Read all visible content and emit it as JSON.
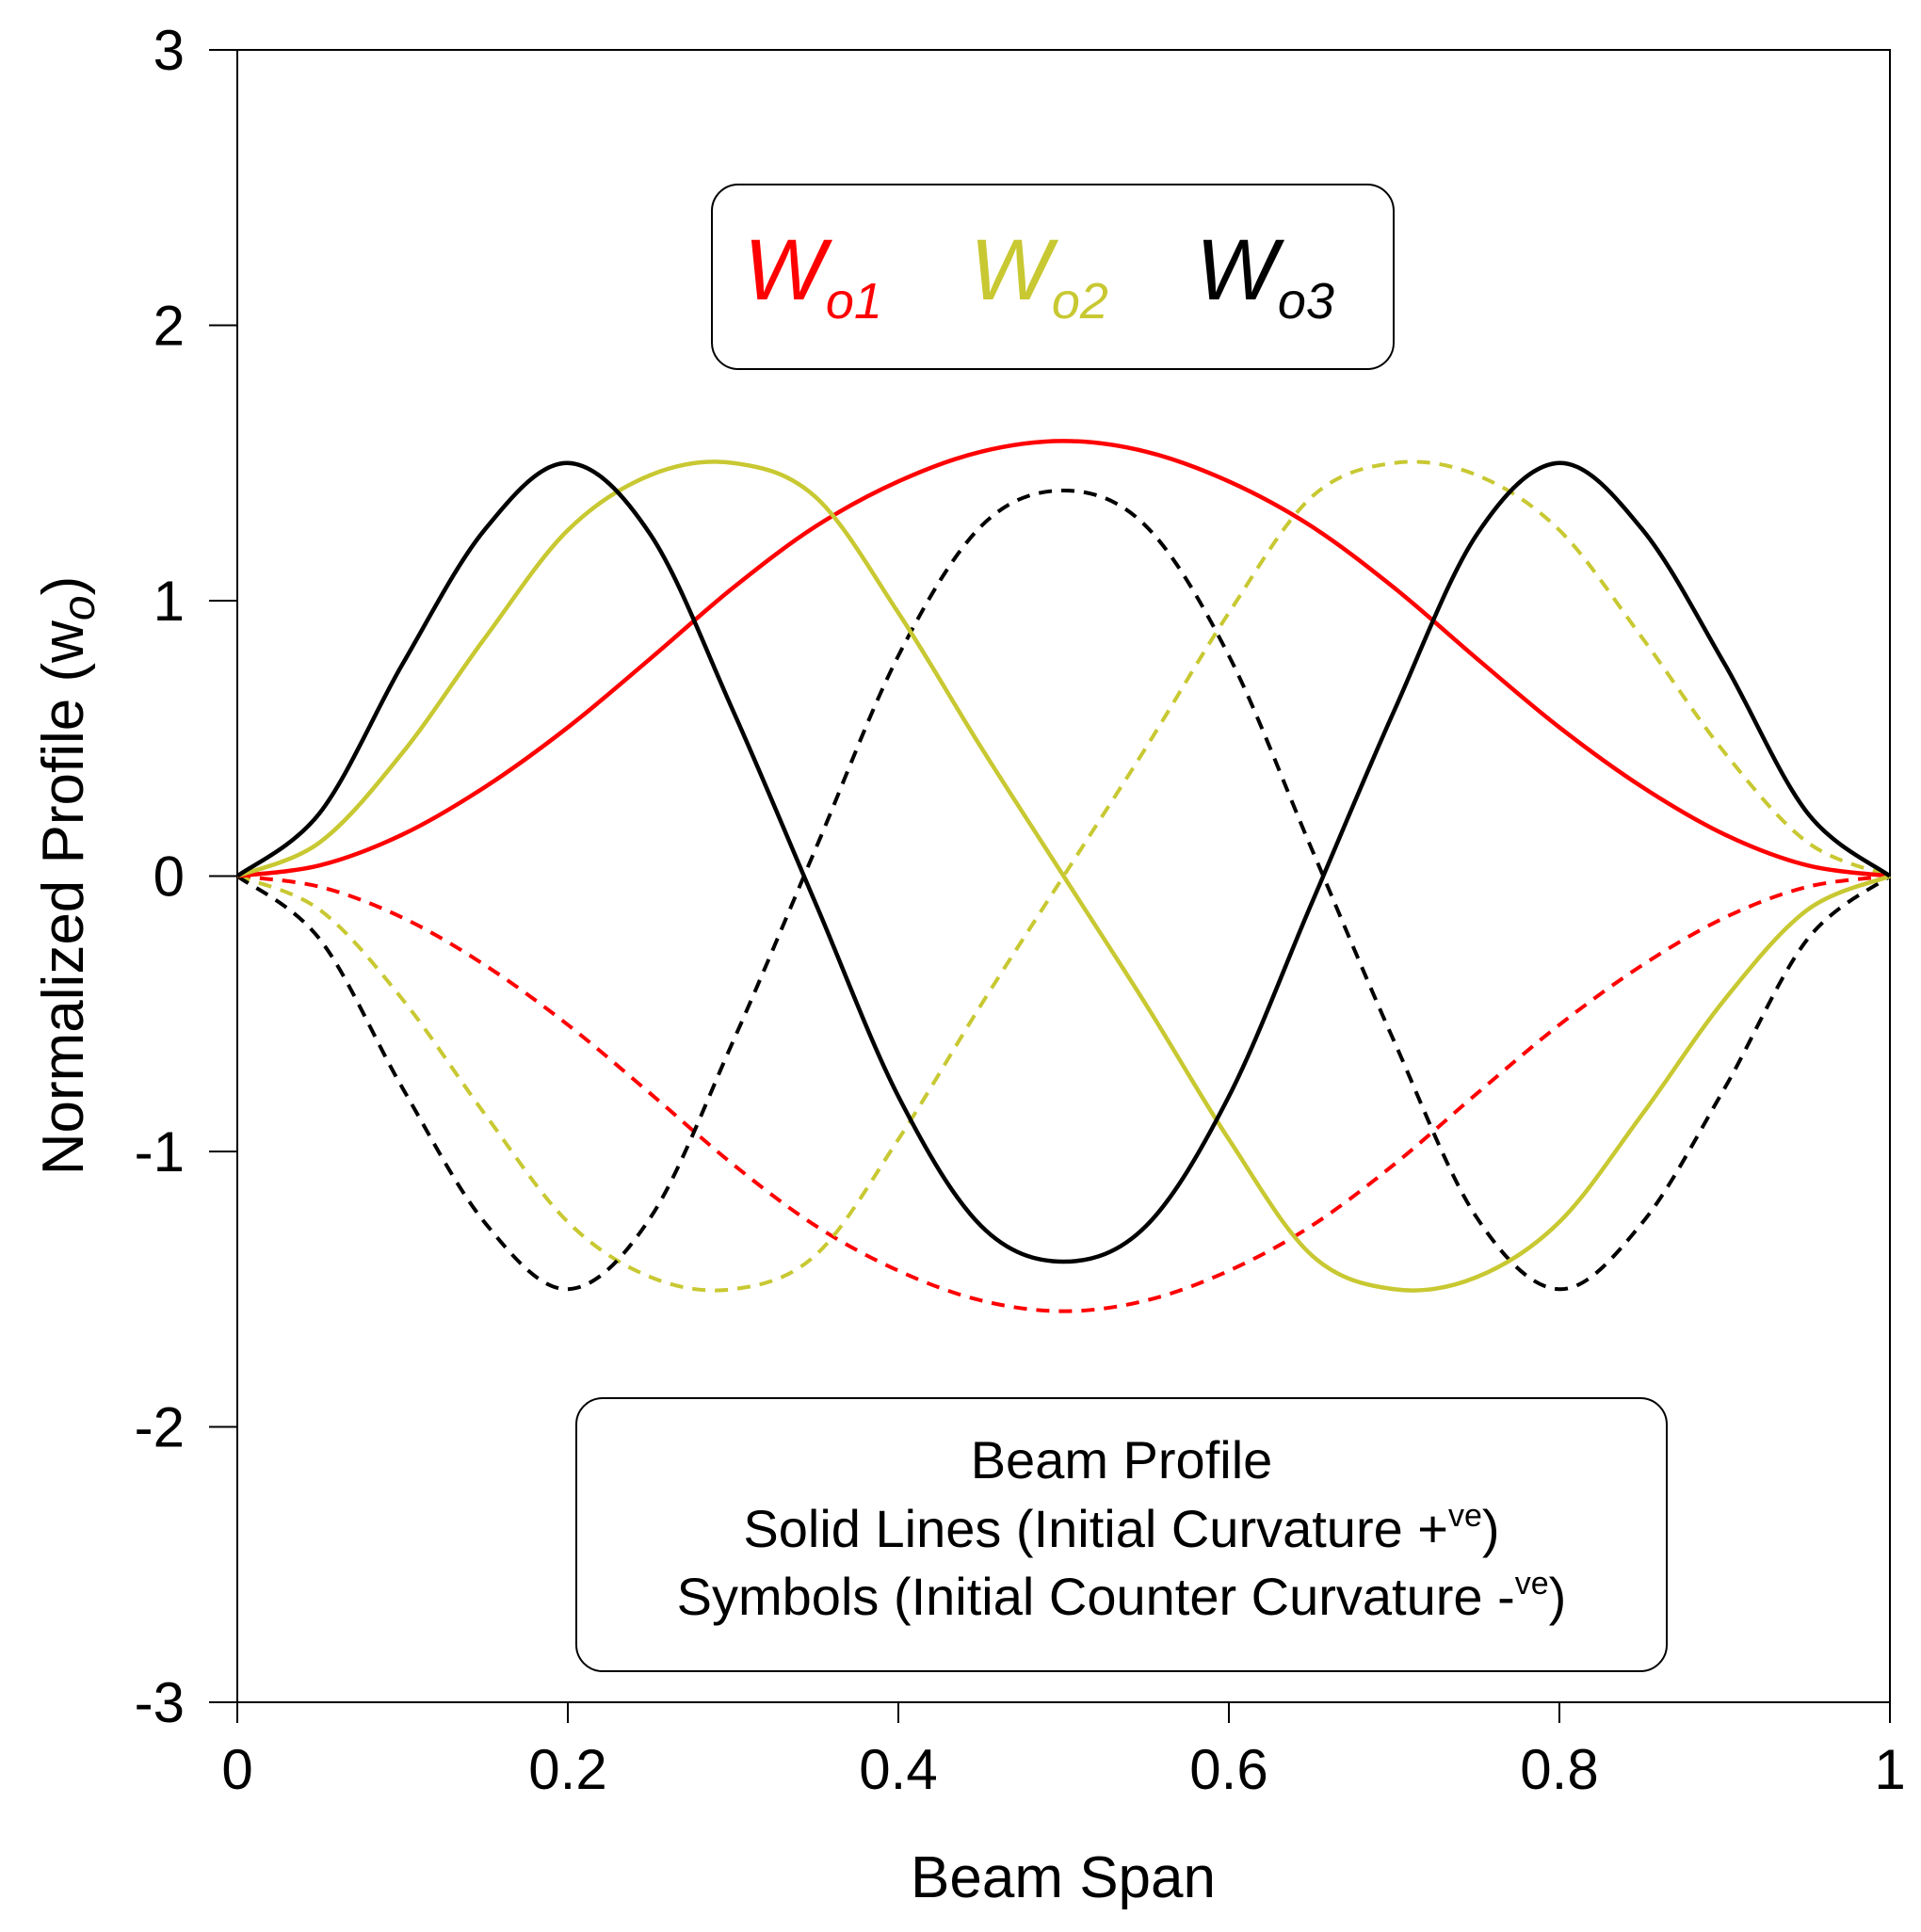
{
  "chart_data": {
    "type": "line",
    "title": "",
    "xlabel": "Beam Span",
    "ylabel": "Normalized Profile (w",
    "ylabel_sub": "o",
    "ylabel_close": ")",
    "xlim": [
      0,
      1
    ],
    "ylim": [
      -3,
      3
    ],
    "xticks": [
      0,
      0.2,
      0.4,
      0.6,
      0.8,
      1
    ],
    "xtick_labels": [
      "0",
      "0.2",
      "0.4",
      "0.6",
      "0.8",
      "1"
    ],
    "yticks": [
      -3,
      -2,
      -1,
      0,
      1,
      2,
      3
    ],
    "ytick_labels": [
      "-3",
      "-2",
      "-1",
      "0",
      "1",
      "2",
      "3"
    ],
    "grid": false,
    "legend": {
      "placement": "top-center",
      "entries": [
        {
          "main": "W",
          "sub": "o1",
          "color": "#ff0000"
        },
        {
          "main": "W",
          "sub": "o2",
          "color": "#c8c832"
        },
        {
          "main": "W",
          "sub": "o3",
          "color": "#000000"
        }
      ]
    },
    "note": {
      "placement": "bottom-center",
      "line1": "Beam Profile",
      "line2_a": "Solid Lines (Initial Curvature +",
      "line2_sup": "ve",
      "line2_b": ")",
      "line3_a": "Symbols (Initial Counter Curvature -",
      "line3_sup": "ve",
      "line3_b": ")"
    },
    "x": [
      0,
      0.05,
      0.1,
      0.15,
      0.2,
      0.25,
      0.3,
      0.35,
      0.4,
      0.45,
      0.5,
      0.55,
      0.6,
      0.65,
      0.7,
      0.75,
      0.8,
      0.85,
      0.9,
      0.95,
      1
    ],
    "series": [
      {
        "name": "Wo1 (+ve)",
        "color": "#ff0000",
        "style": "solid",
        "values": [
          0,
          0.039,
          0.151,
          0.324,
          0.54,
          0.79,
          1.047,
          1.27,
          1.433,
          1.541,
          1.58,
          1.541,
          1.433,
          1.27,
          1.047,
          0.79,
          0.54,
          0.324,
          0.151,
          0.039,
          0
        ]
      },
      {
        "name": "Wo1 (-ve)",
        "color": "#ff0000",
        "style": "dashed",
        "values": [
          0,
          -0.039,
          -0.151,
          -0.324,
          -0.54,
          -0.79,
          -1.047,
          -1.27,
          -1.433,
          -1.541,
          -1.58,
          -1.541,
          -1.433,
          -1.27,
          -1.047,
          -0.79,
          -0.54,
          -0.324,
          -0.151,
          -0.039,
          0
        ]
      },
      {
        "name": "Wo2 (+ve)",
        "color": "#c8c832",
        "style": "solid",
        "values": [
          0,
          0.123,
          0.448,
          0.866,
          1.256,
          1.456,
          1.5,
          1.376,
          0.956,
          0.468,
          0,
          -0.468,
          -0.956,
          -1.376,
          -1.5,
          -1.456,
          -1.256,
          -0.866,
          -0.448,
          -0.123,
          0
        ]
      },
      {
        "name": "Wo2 (-ve)",
        "color": "#c8c832",
        "style": "dashed",
        "values": [
          0,
          -0.123,
          -0.448,
          -0.866,
          -1.256,
          -1.456,
          -1.5,
          -1.376,
          -0.956,
          -0.468,
          0,
          0.468,
          0.956,
          1.376,
          1.5,
          1.456,
          1.256,
          0.866,
          0.448,
          0.123,
          0
        ]
      },
      {
        "name": "Wo3 (+ve)",
        "color": "#000000",
        "style": "solid",
        "values": [
          0,
          0.23,
          0.77,
          1.26,
          1.5,
          1.24,
          0.6,
          -0.1,
          -0.8,
          -1.27,
          -1.4,
          -1.27,
          -0.8,
          -0.1,
          0.6,
          1.24,
          1.5,
          1.26,
          0.77,
          0.23,
          0
        ]
      },
      {
        "name": "Wo3 (-ve)",
        "color": "#000000",
        "style": "dashed",
        "values": [
          0,
          -0.23,
          -0.77,
          -1.26,
          -1.5,
          -1.24,
          -0.6,
          0.1,
          0.8,
          1.27,
          1.4,
          1.27,
          0.8,
          0.1,
          -0.6,
          -1.24,
          -1.5,
          -1.26,
          -0.77,
          -0.23,
          0
        ]
      }
    ]
  }
}
